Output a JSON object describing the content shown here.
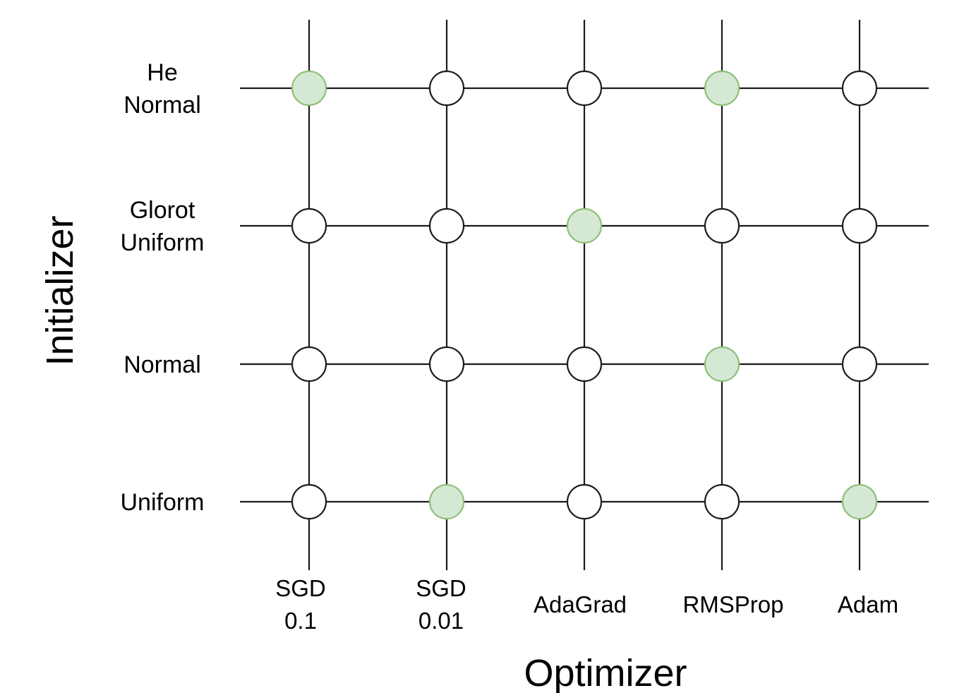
{
  "axes": {
    "x_title": "Optimizer",
    "y_title": "Initializer"
  },
  "rows": [
    {
      "label_lines": [
        "He",
        "Normal"
      ]
    },
    {
      "label_lines": [
        "Glorot",
        "Uniform"
      ]
    },
    {
      "label_lines": [
        "Normal"
      ]
    },
    {
      "label_lines": [
        "Uniform"
      ]
    }
  ],
  "columns": [
    {
      "label_lines": [
        "SGD",
        "0.1"
      ]
    },
    {
      "label_lines": [
        "SGD",
        "0.01"
      ]
    },
    {
      "label_lines": [
        "AdaGrad"
      ]
    },
    {
      "label_lines": [
        "RMSProp"
      ]
    },
    {
      "label_lines": [
        "Adam"
      ]
    }
  ],
  "selected": [
    [
      true,
      false,
      false,
      true,
      false
    ],
    [
      false,
      false,
      true,
      false,
      false
    ],
    [
      false,
      false,
      false,
      true,
      false
    ],
    [
      false,
      true,
      false,
      false,
      true
    ]
  ],
  "colors": {
    "selected_fill": "#d5e8d4",
    "selected_stroke": "#8fbf78",
    "default_fill": "#ffffff",
    "line": "#1a1a1a"
  }
}
